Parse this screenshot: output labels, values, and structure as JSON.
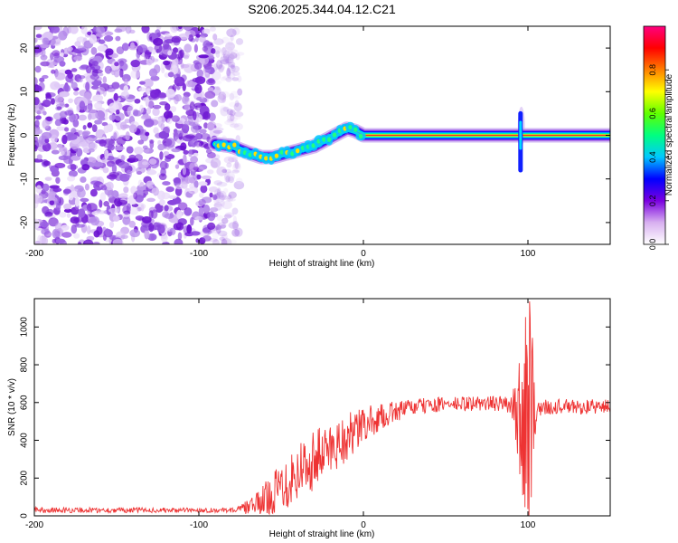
{
  "title": "S206.2025.344.04.12.C21",
  "chart_data": [
    {
      "type": "heatmap",
      "name": "spectrogram",
      "xlabel": "Height of straight line (km)",
      "ylabel": "Frequency (Hz)",
      "xlim": [
        -200,
        150
      ],
      "ylim": [
        -25,
        25
      ],
      "xticks": [
        -200,
        -100,
        0,
        100
      ],
      "yticks": [
        -20,
        -10,
        0,
        10,
        20
      ],
      "colorbar": {
        "label": "Normalized spectral amplitude",
        "range": [
          0,
          1
        ],
        "ticks": [
          "0.0",
          "0.2",
          "0.4",
          "0.6",
          "0.8"
        ],
        "colors": [
          "#ffffff",
          "#d8b0f0",
          "#7a00e0",
          "#0000ff",
          "#00c8ff",
          "#00ff80",
          "#60ff00",
          "#ffff00",
          "#ff8000",
          "#ff0000",
          "#ff0080"
        ]
      },
      "noise_region_x": [
        -200,
        -75
      ],
      "signal_trace": {
        "x": [
          -90,
          -80,
          -70,
          -62,
          -55,
          -50,
          -45,
          -40,
          -35,
          -30,
          -25,
          -20,
          -15,
          -10,
          -5,
          0,
          10,
          50,
          90,
          95,
          100,
          150
        ],
        "y": [
          -2,
          -2.5,
          -4,
          -5,
          -5,
          -4.5,
          -4,
          -3.5,
          -3,
          -2.5,
          -1.5,
          -0.5,
          0.5,
          1.5,
          1,
          0,
          0,
          0,
          0,
          0,
          0,
          0
        ]
      }
    },
    {
      "type": "line",
      "name": "snr",
      "xlabel": "Height of straight line (km)",
      "ylabel": "SNR (10 * v/v)",
      "xlim": [
        -200,
        150
      ],
      "ylim": [
        0,
        1150
      ],
      "xticks": [
        -200,
        -100,
        0,
        100
      ],
      "yticks": [
        0,
        200,
        400,
        600,
        800,
        1000
      ],
      "color": "#ee3333",
      "envelope": {
        "x": [
          -200,
          -80,
          -75,
          -65,
          -55,
          -45,
          -35,
          -25,
          -15,
          -5,
          0,
          10,
          20,
          30,
          40,
          50,
          60,
          70,
          80,
          90,
          95,
          98,
          100,
          102,
          105,
          110,
          120,
          130,
          140,
          150
        ],
        "mean": [
          30,
          30,
          35,
          60,
          120,
          200,
          270,
          330,
          390,
          440,
          480,
          520,
          555,
          575,
          585,
          590,
          592,
          595,
          595,
          590,
          520,
          580,
          560,
          540,
          560,
          575,
          580,
          575,
          578,
          578
        ],
        "noise": [
          15,
          12,
          20,
          60,
          110,
          160,
          170,
          150,
          140,
          120,
          100,
          70,
          55,
          45,
          40,
          40,
          40,
          40,
          40,
          45,
          300,
          500,
          550,
          450,
          60,
          40,
          40,
          40,
          40,
          40
        ]
      }
    }
  ]
}
